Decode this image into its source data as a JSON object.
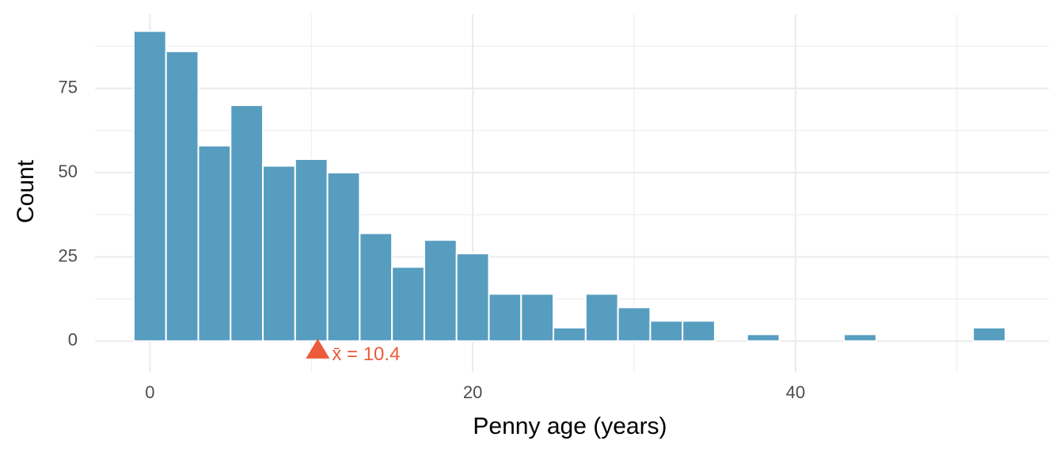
{
  "chart_data": {
    "type": "histogram",
    "x_label": "Penny age (years)",
    "y_label": "Count",
    "bins": [
      -1,
      1,
      3,
      5,
      7,
      9,
      11,
      13,
      15,
      17,
      19,
      21,
      23,
      25,
      27,
      29,
      31,
      33,
      35,
      37,
      39,
      41,
      43,
      45,
      47,
      49,
      51,
      53
    ],
    "values": [
      92,
      86,
      58,
      70,
      52,
      54,
      50,
      32,
      22,
      30,
      26,
      14,
      14,
      4,
      14,
      10,
      6,
      6,
      0,
      2,
      0,
      0,
      2,
      0,
      0,
      0,
      4
    ],
    "color": "#579dc0",
    "xlim": [
      -3.4,
      55.7
    ],
    "ylim": [
      -9.2,
      97
    ],
    "xticks": [
      0,
      20,
      40
    ],
    "yticks": [
      0,
      25,
      50,
      75
    ],
    "xminor": [
      10,
      30,
      50
    ],
    "yminor": [
      12.5,
      37.5,
      62.5,
      87.5
    ],
    "grid": true,
    "mean": 10.4,
    "mean_label": "x̄ = 10.4",
    "mean_color": "#ec5b3a"
  }
}
